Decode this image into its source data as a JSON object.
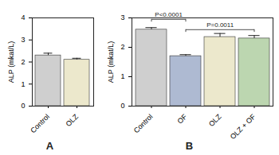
{
  "chart_data": [
    {
      "type": "bar",
      "title": "A",
      "categories": [
        "Control",
        "OLZ"
      ],
      "values": [
        2.3,
        2.1
      ],
      "errors": [
        0.1,
        0.07
      ],
      "colors": [
        "#cfcfcf",
        "#ece8cc"
      ],
      "ylabel": "ALP (mkat/L)",
      "ylim": [
        0,
        4
      ],
      "yticks": [
        0,
        1,
        2,
        3,
        4
      ]
    },
    {
      "type": "bar",
      "title": "B",
      "categories": [
        "Control",
        "OF",
        "OLZ",
        "OLZ + OF"
      ],
      "values": [
        2.6,
        1.7,
        2.35,
        2.3
      ],
      "errors": [
        0.07,
        0.05,
        0.12,
        0.1
      ],
      "colors": [
        "#cfcfcf",
        "#aebad2",
        "#ece8cc",
        "#bcd6b0"
      ],
      "ylabel": "ALP (mkat/L)",
      "ylim": [
        0,
        3
      ],
      "yticks": [
        0,
        1,
        2,
        3
      ],
      "annotations": [
        {
          "text": "P<0.0001",
          "from": "Control",
          "to": "OF",
          "y": 2.95
        },
        {
          "text": "P=0.0011",
          "from": "OF",
          "to": "OLZ + OF",
          "y": 2.6
        }
      ]
    }
  ]
}
